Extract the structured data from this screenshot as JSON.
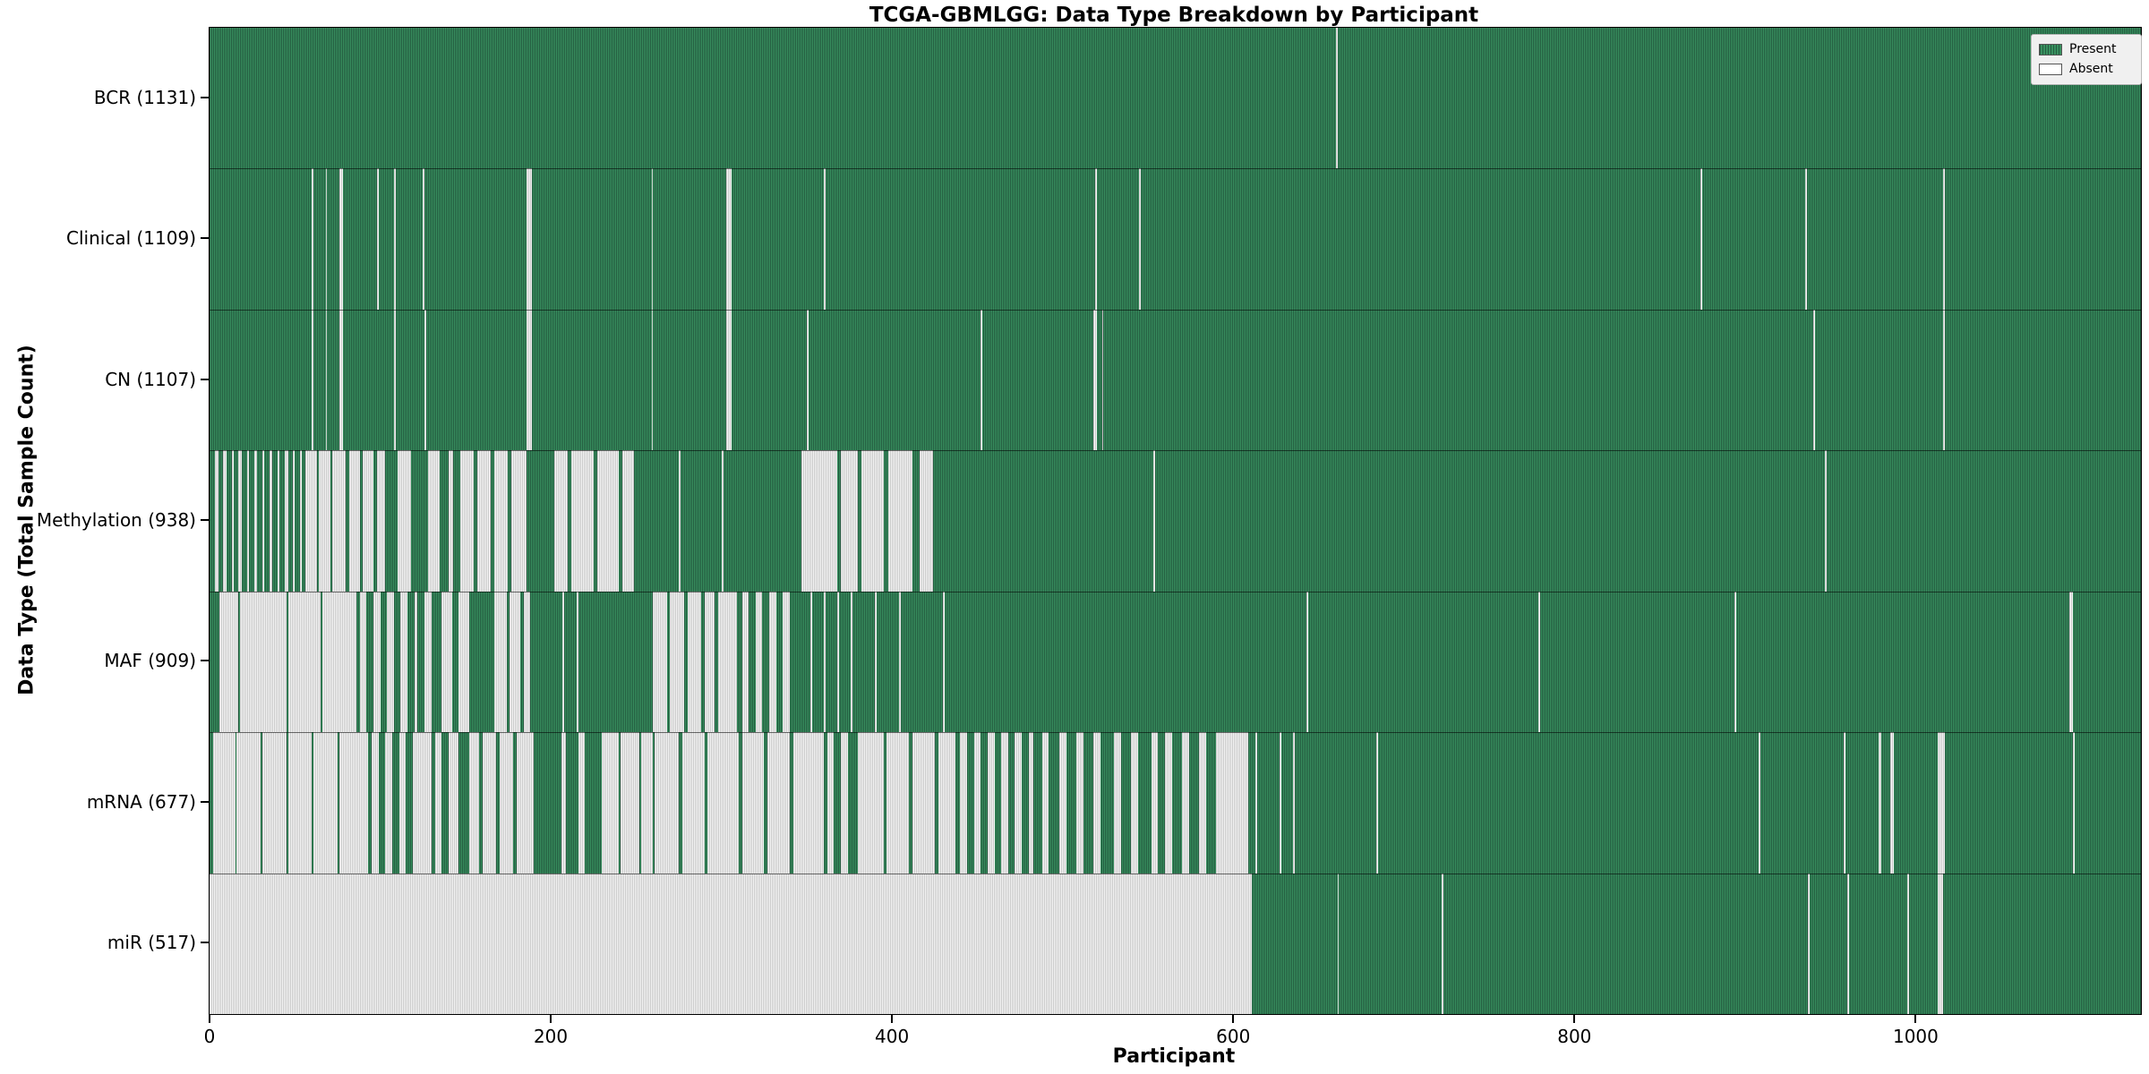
{
  "title": "TCGA-GBMLGG: Data Type Breakdown by Participant",
  "x_axis": {
    "label": "Participant",
    "ticks": [
      0,
      200,
      400,
      600,
      800,
      1000
    ]
  },
  "y_axis": {
    "label": "Data Type (Total Sample Count)"
  },
  "legend": {
    "present_label": "Present",
    "absent_label": "Absent"
  },
  "colors": {
    "present": "#2e8b57",
    "present_stripe_dark": "#245c40",
    "present_stripe_light": "#38905f",
    "absent": "#ffffff",
    "absent_stripe_gray": "#c9c9c9",
    "legend_background": "#f0f0f0"
  },
  "chart_data": {
    "type": "heatmap",
    "xlabel": "Participant",
    "ylabel": "Data Type (Total Sample Count)",
    "n_participants": 1132,
    "xlim": [
      -0.5,
      1131.5
    ],
    "legend_position": "upper right",
    "states": {
      "present": "Present",
      "absent": "Absent"
    },
    "rows": [
      {
        "label": "BCR (1131)",
        "data_type": "BCR",
        "present_count": 1131,
        "absent_ranges": [
          [
            660,
            661
          ]
        ]
      },
      {
        "label": "Clinical (1109)",
        "data_type": "Clinical",
        "present_count": 1109,
        "absent_ranges": [
          [
            60,
            61
          ],
          [
            68,
            69
          ],
          [
            76,
            78
          ],
          [
            98,
            99
          ],
          [
            108,
            109
          ],
          [
            125,
            126
          ],
          [
            186,
            189
          ],
          [
            259,
            260
          ],
          [
            303,
            306
          ],
          [
            360,
            361
          ],
          [
            519,
            520
          ],
          [
            545,
            546
          ],
          [
            874,
            875
          ],
          [
            935,
            936
          ],
          [
            1016,
            1017
          ]
        ]
      },
      {
        "label": "CN (1107)",
        "data_type": "CN",
        "present_count": 1107,
        "absent_ranges": [
          [
            60,
            61
          ],
          [
            68,
            69
          ],
          [
            76,
            78
          ],
          [
            108,
            109
          ],
          [
            126,
            127
          ],
          [
            186,
            189
          ],
          [
            259,
            260
          ],
          [
            303,
            306
          ],
          [
            350,
            351
          ],
          [
            452,
            453
          ],
          [
            518,
            520
          ],
          [
            523,
            524
          ],
          [
            940,
            941
          ],
          [
            1016,
            1017
          ]
        ]
      },
      {
        "label": "Methylation (938)",
        "data_type": "Methylation",
        "present_count": 938,
        "absent_ranges": [
          [
            3,
            5
          ],
          [
            8,
            10
          ],
          [
            13,
            14
          ],
          [
            17,
            19
          ],
          [
            22,
            23
          ],
          [
            26,
            28
          ],
          [
            31,
            32
          ],
          [
            35,
            37
          ],
          [
            40,
            41
          ],
          [
            44,
            46
          ],
          [
            49,
            50
          ],
          [
            53,
            54
          ],
          [
            56,
            63
          ],
          [
            64,
            71
          ],
          [
            72,
            80
          ],
          [
            82,
            88
          ],
          [
            90,
            96
          ],
          [
            98,
            103
          ],
          [
            110,
            118
          ],
          [
            128,
            135
          ],
          [
            140,
            143
          ],
          [
            147,
            155
          ],
          [
            157,
            165
          ],
          [
            167,
            175
          ],
          [
            177,
            186
          ],
          [
            202,
            210
          ],
          [
            212,
            225
          ],
          [
            227,
            240
          ],
          [
            242,
            249
          ],
          [
            275,
            276
          ],
          [
            300,
            301
          ],
          [
            347,
            368
          ],
          [
            370,
            380
          ],
          [
            382,
            395
          ],
          [
            398,
            412
          ],
          [
            416,
            424
          ],
          [
            553,
            554
          ],
          [
            947,
            948
          ]
        ]
      },
      {
        "label": "MAF (909)",
        "data_type": "MAF",
        "present_count": 909,
        "absent_ranges": [
          [
            6,
            17
          ],
          [
            18,
            45
          ],
          [
            46,
            65
          ],
          [
            66,
            86
          ],
          [
            88,
            92
          ],
          [
            96,
            100
          ],
          [
            104,
            108
          ],
          [
            112,
            116
          ],
          [
            120,
            122
          ],
          [
            126,
            130
          ],
          [
            136,
            142
          ],
          [
            146,
            152
          ],
          [
            167,
            174
          ],
          [
            176,
            182
          ],
          [
            184,
            188
          ],
          [
            207,
            208
          ],
          [
            215,
            216
          ],
          [
            260,
            268
          ],
          [
            270,
            278
          ],
          [
            280,
            288
          ],
          [
            290,
            296
          ],
          [
            298,
            309
          ],
          [
            312,
            316
          ],
          [
            320,
            324
          ],
          [
            328,
            332
          ],
          [
            336,
            340
          ],
          [
            352,
            353
          ],
          [
            360,
            361
          ],
          [
            368,
            369
          ],
          [
            376,
            377
          ],
          [
            390,
            391
          ],
          [
            404,
            405
          ],
          [
            430,
            431
          ],
          [
            643,
            644
          ],
          [
            779,
            780
          ],
          [
            894,
            895
          ],
          [
            1090,
            1092
          ]
        ]
      },
      {
        "label": "mRNA (677)",
        "data_type": "mRNA",
        "present_count": 677,
        "absent_ranges": [
          [
            2,
            15
          ],
          [
            16,
            30
          ],
          [
            31,
            45
          ],
          [
            46,
            60
          ],
          [
            61,
            75
          ],
          [
            76,
            93
          ],
          [
            95,
            99
          ],
          [
            103,
            107
          ],
          [
            111,
            115
          ],
          [
            119,
            130
          ],
          [
            132,
            136
          ],
          [
            140,
            146
          ],
          [
            152,
            158
          ],
          [
            160,
            168
          ],
          [
            170,
            178
          ],
          [
            180,
            190
          ],
          [
            206,
            209
          ],
          [
            216,
            220
          ],
          [
            230,
            240
          ],
          [
            241,
            252
          ],
          [
            253,
            260
          ],
          [
            261,
            275
          ],
          [
            277,
            290
          ],
          [
            292,
            310
          ],
          [
            312,
            325
          ],
          [
            327,
            340
          ],
          [
            342,
            360
          ],
          [
            362,
            366
          ],
          [
            370,
            374
          ],
          [
            380,
            395
          ],
          [
            397,
            410
          ],
          [
            412,
            425
          ],
          [
            427,
            437
          ],
          [
            440,
            444
          ],
          [
            448,
            452
          ],
          [
            456,
            460
          ],
          [
            464,
            468
          ],
          [
            472,
            476
          ],
          [
            480,
            483
          ],
          [
            488,
            492
          ],
          [
            498,
            502
          ],
          [
            508,
            512
          ],
          [
            518,
            522
          ],
          [
            530,
            534
          ],
          [
            540,
            544
          ],
          [
            552,
            556
          ],
          [
            560,
            564
          ],
          [
            570,
            574
          ],
          [
            580,
            584
          ],
          [
            590,
            609
          ],
          [
            613,
            614
          ],
          [
            627,
            628
          ],
          [
            635,
            636
          ],
          [
            684,
            685
          ],
          [
            908,
            909
          ],
          [
            958,
            959
          ],
          [
            978,
            980
          ],
          [
            985,
            987
          ],
          [
            1013,
            1017
          ],
          [
            1092,
            1093
          ]
        ]
      },
      {
        "label": "miR (517)",
        "data_type": "miR",
        "present_count": 517,
        "absent_ranges": [
          [
            0,
            611
          ],
          [
            661,
            662
          ],
          [
            722,
            723
          ],
          [
            937,
            938
          ],
          [
            960,
            961
          ],
          [
            995,
            996
          ],
          [
            1013,
            1016
          ]
        ]
      }
    ]
  }
}
